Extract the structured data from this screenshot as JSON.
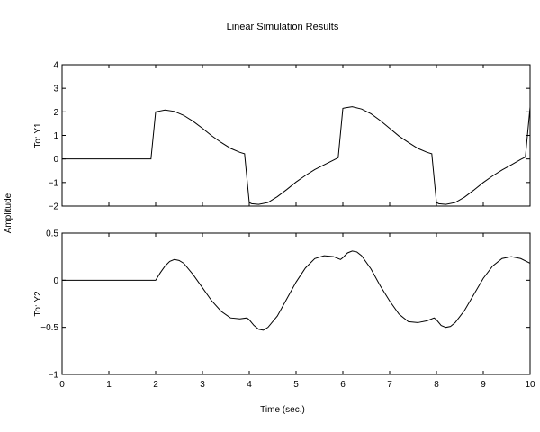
{
  "title": "Linear Simulation Results",
  "ylabel": "Amplitude",
  "xlabel": "Time (sec.)",
  "chart_data": [
    {
      "type": "line",
      "ylabel": "To: Y1",
      "xlim": [
        0,
        10
      ],
      "ylim": [
        -2,
        4
      ],
      "xticks": [
        0,
        1,
        2,
        3,
        4,
        5,
        6,
        7,
        8,
        9,
        10
      ],
      "yticks": [
        -2,
        -1,
        0,
        1,
        2,
        3,
        4
      ],
      "ytick_labels": [
        "−2",
        "−1",
        "0",
        "1",
        "2",
        "3",
        "4"
      ],
      "show_x_tick_labels": false,
      "grid": false,
      "series": [
        {
          "x": [
            0,
            1.9,
            2.0,
            2.05,
            2.2,
            2.4,
            2.6,
            2.8,
            3.0,
            3.2,
            3.4,
            3.6,
            3.8,
            3.9,
            4.0,
            4.05,
            4.2,
            4.4,
            4.6,
            4.8,
            5.0,
            5.2,
            5.4,
            5.6,
            5.8,
            5.9,
            6.0,
            6.05,
            6.2,
            6.4,
            6.6,
            6.8,
            7.0,
            7.2,
            7.4,
            7.6,
            7.8,
            7.9,
            8.0,
            8.05,
            8.2,
            8.4,
            8.6,
            8.8,
            9.0,
            9.2,
            9.4,
            9.6,
            9.8,
            9.9,
            10.0
          ],
          "y": [
            0,
            0,
            2.0,
            2.02,
            2.08,
            2.02,
            1.85,
            1.6,
            1.3,
            0.98,
            0.7,
            0.45,
            0.28,
            0.22,
            -1.85,
            -1.9,
            -1.93,
            -1.85,
            -1.6,
            -1.3,
            -0.98,
            -0.7,
            -0.45,
            -0.25,
            -0.05,
            0.05,
            2.15,
            2.17,
            2.22,
            2.12,
            1.92,
            1.63,
            1.3,
            0.97,
            0.7,
            0.45,
            0.28,
            0.22,
            -1.85,
            -1.9,
            -1.93,
            -1.85,
            -1.62,
            -1.32,
            -1.0,
            -0.72,
            -0.47,
            -0.25,
            -0.02,
            0.08,
            2.2
          ]
        }
      ]
    },
    {
      "type": "line",
      "ylabel": "To: Y2",
      "xlim": [
        0,
        10
      ],
      "ylim": [
        -1,
        0.5
      ],
      "xticks": [
        0,
        1,
        2,
        3,
        4,
        5,
        6,
        7,
        8,
        9,
        10
      ],
      "xtick_labels": [
        "0",
        "1",
        "2",
        "3",
        "4",
        "5",
        "6",
        "7",
        "8",
        "9",
        "10"
      ],
      "yticks": [
        -1,
        -0.5,
        0,
        0.5
      ],
      "ytick_labels": [
        "−1",
        "−0.5",
        "0",
        "0.5"
      ],
      "show_x_tick_labels": true,
      "grid": false,
      "series": [
        {
          "x": [
            0,
            2.0,
            2.1,
            2.2,
            2.3,
            2.4,
            2.5,
            2.6,
            2.8,
            3.0,
            3.2,
            3.4,
            3.6,
            3.8,
            3.95,
            4.0,
            4.1,
            4.2,
            4.3,
            4.4,
            4.6,
            4.8,
            5.0,
            5.2,
            5.4,
            5.6,
            5.8,
            5.95,
            6.0,
            6.1,
            6.2,
            6.3,
            6.4,
            6.6,
            6.8,
            7.0,
            7.2,
            7.4,
            7.6,
            7.8,
            7.95,
            8.0,
            8.1,
            8.2,
            8.3,
            8.4,
            8.6,
            8.8,
            9.0,
            9.2,
            9.4,
            9.6,
            9.8,
            10.0
          ],
          "y": [
            0,
            0,
            0.08,
            0.15,
            0.2,
            0.22,
            0.21,
            0.18,
            0.06,
            -0.08,
            -0.22,
            -0.33,
            -0.4,
            -0.41,
            -0.4,
            -0.42,
            -0.48,
            -0.52,
            -0.53,
            -0.5,
            -0.38,
            -0.2,
            -0.02,
            0.13,
            0.23,
            0.26,
            0.25,
            0.22,
            0.24,
            0.29,
            0.31,
            0.3,
            0.26,
            0.12,
            -0.06,
            -0.22,
            -0.36,
            -0.44,
            -0.45,
            -0.43,
            -0.4,
            -0.42,
            -0.48,
            -0.5,
            -0.49,
            -0.45,
            -0.32,
            -0.15,
            0.02,
            0.15,
            0.23,
            0.25,
            0.23,
            0.18
          ]
        }
      ]
    }
  ]
}
